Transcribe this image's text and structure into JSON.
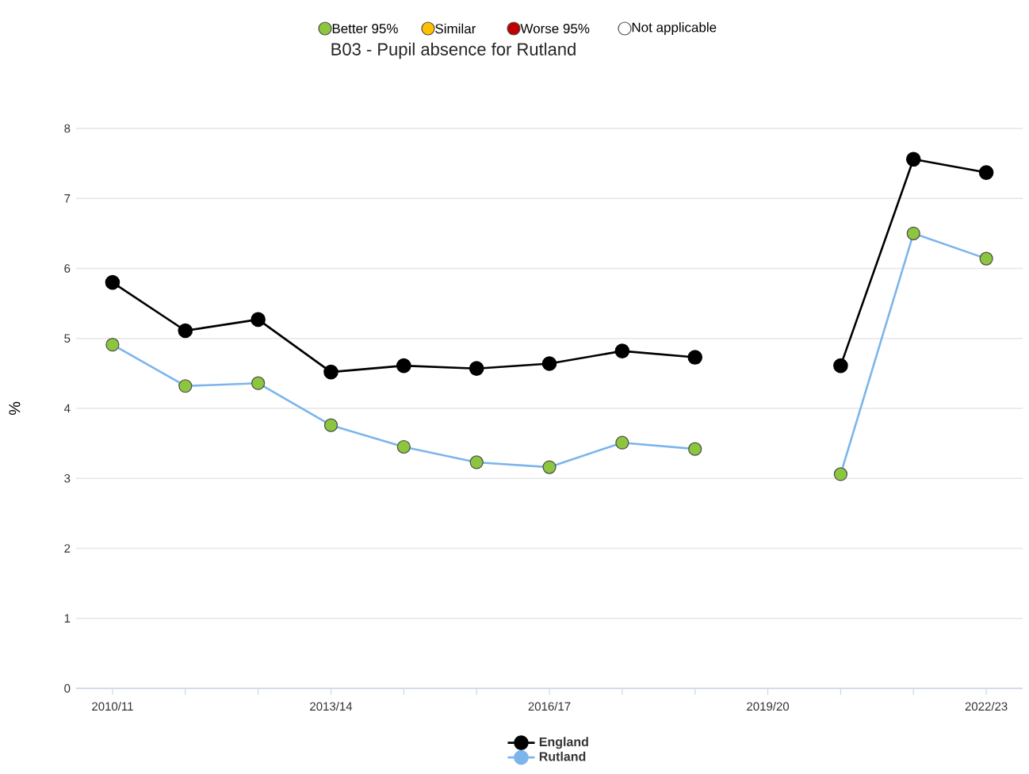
{
  "chart_data": {
    "type": "line",
    "title": "B03 - Pupil absence for Rutland",
    "ylabel": "%",
    "annotations": [
      "Better 95%",
      "Similar",
      "Worse 95%",
      "Not applicable"
    ],
    "categories": [
      "2010/11",
      null,
      null,
      "2013/14",
      null,
      null,
      "2016/17",
      null,
      null,
      "2019/20",
      null,
      null,
      "2022/23"
    ],
    "series": [
      {
        "name": "England",
        "color": "#000000",
        "values": [
          5.8,
          5.11,
          5.27,
          4.52,
          4.61,
          4.57,
          4.64,
          4.82,
          4.73,
          null,
          4.61,
          7.56,
          7.37
        ]
      },
      {
        "name": "Rutland",
        "color": "#7cb5ec",
        "colors": [
          "#8cc63f",
          "#8cc63f",
          "#8cc63f",
          "#8cc63f",
          "#8cc63f",
          "#8cc63f",
          "#8cc63f",
          "#8cc63f",
          "#8cc63f",
          null,
          "#8cc63f",
          "#8cc63f",
          "#8cc63f"
        ],
        "values": [
          4.91,
          4.32,
          4.36,
          3.76,
          3.45,
          3.23,
          3.16,
          3.51,
          3.42,
          null,
          3.06,
          6.5,
          6.14
        ]
      }
    ],
    "ylim": [
      0,
      8
    ],
    "yticks": [
      0,
      1,
      2,
      3,
      4,
      5,
      6,
      7,
      8
    ],
    "grid": "y",
    "legend": "bottom",
    "marker": "circle",
    "line_style": "solid"
  }
}
